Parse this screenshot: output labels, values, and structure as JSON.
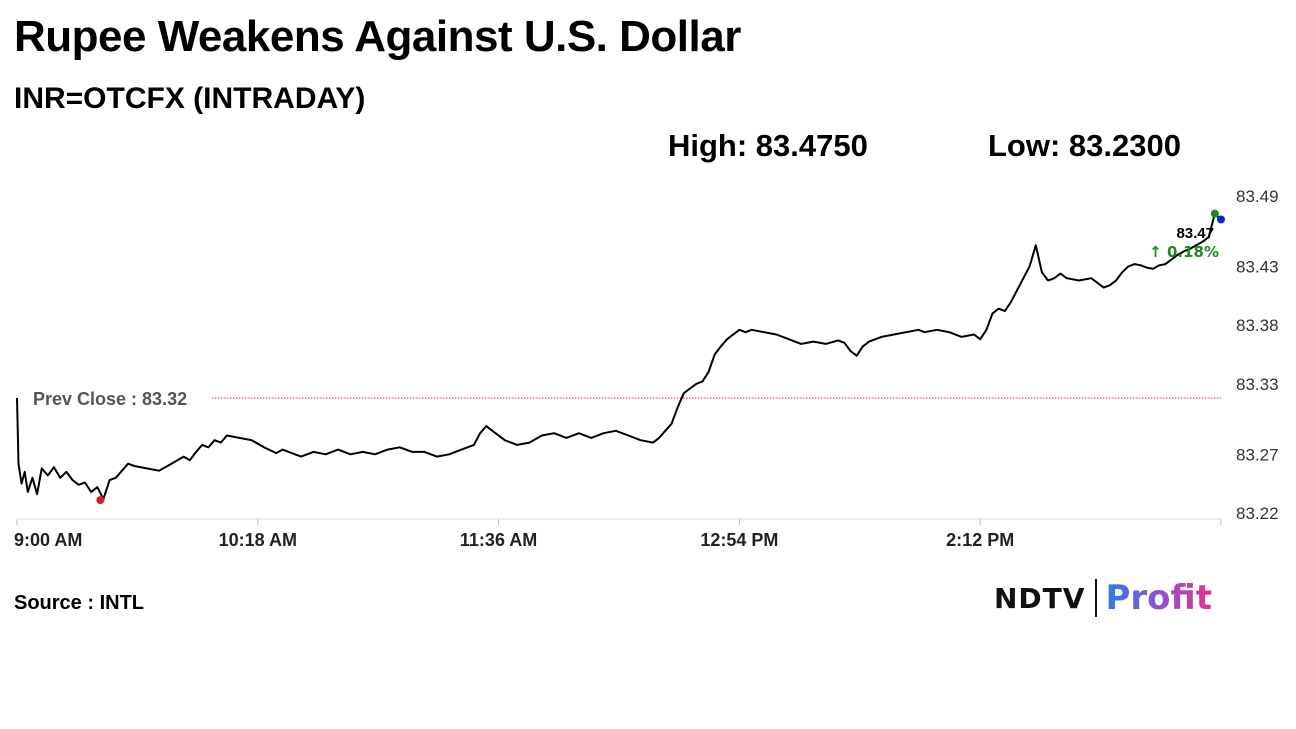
{
  "title": "Rupee Weakens Against U.S. Dollar",
  "subtitle": "INR=OTCFX (INTRADAY)",
  "stats": {
    "high": "High: 83.4750",
    "low": "Low: 83.2300"
  },
  "source": "Source : INTL",
  "brand": {
    "left": "NDTV",
    "right": "Profit"
  },
  "chart_data": {
    "type": "line",
    "y_ticks": [
      "83.49",
      "83.43",
      "83.38",
      "83.33",
      "83.27",
      "83.22"
    ],
    "y_tick_values": [
      83.49,
      83.43,
      83.38,
      83.33,
      83.27,
      83.22
    ],
    "ylim": [
      83.22,
      83.49
    ],
    "x_ticks": [
      "9:00 AM",
      "10:18 AM",
      "11:36 AM",
      "12:54 PM",
      "2:12 PM"
    ],
    "x_tick_minutes": [
      0,
      78,
      156,
      234,
      312
    ],
    "xlim": [
      0,
      390
    ],
    "prev_close": {
      "label": "Prev Close : 83.32",
      "value": 83.318,
      "color": "#c0392b"
    },
    "last": {
      "value_label": "83.47",
      "change_label": "↑ 0.18%",
      "change_color": "#1e8c1e"
    },
    "markers": [
      {
        "name": "day-low-marker",
        "x": 27,
        "y": 83.231,
        "color": "#e31b1b"
      },
      {
        "name": "day-high-marker",
        "x": 388,
        "y": 83.475,
        "color": "#1a8a1a"
      },
      {
        "name": "last-price-marker",
        "x": 390,
        "y": 83.47,
        "color": "#1122cc"
      }
    ],
    "series": [
      {
        "color": "#000000",
        "points": [
          [
            0,
            83.318
          ],
          [
            0.5,
            83.262
          ],
          [
            1.5,
            83.245
          ],
          [
            2.5,
            83.255
          ],
          [
            3.5,
            83.238
          ],
          [
            5,
            83.25
          ],
          [
            6.5,
            83.236
          ],
          [
            8,
            83.258
          ],
          [
            10,
            83.252
          ],
          [
            12,
            83.259
          ],
          [
            14,
            83.25
          ],
          [
            16,
            83.255
          ],
          [
            18,
            83.248
          ],
          [
            20,
            83.244
          ],
          [
            22,
            83.246
          ],
          [
            24,
            83.238
          ],
          [
            26,
            83.242
          ],
          [
            28,
            83.232
          ],
          [
            30,
            83.248
          ],
          [
            32,
            83.25
          ],
          [
            34,
            83.256
          ],
          [
            36,
            83.262
          ],
          [
            38,
            83.26
          ],
          [
            42,
            83.258
          ],
          [
            46,
            83.256
          ],
          [
            50,
            83.262
          ],
          [
            54,
            83.268
          ],
          [
            56,
            83.265
          ],
          [
            58,
            83.272
          ],
          [
            60,
            83.278
          ],
          [
            62,
            83.276
          ],
          [
            64,
            83.282
          ],
          [
            66,
            83.28
          ],
          [
            68,
            83.286
          ],
          [
            72,
            83.284
          ],
          [
            76,
            83.282
          ],
          [
            80,
            83.276
          ],
          [
            84,
            83.271
          ],
          [
            86,
            83.274
          ],
          [
            88,
            83.272
          ],
          [
            92,
            83.268
          ],
          [
            96,
            83.272
          ],
          [
            100,
            83.27
          ],
          [
            104,
            83.274
          ],
          [
            108,
            83.27
          ],
          [
            112,
            83.272
          ],
          [
            116,
            83.27
          ],
          [
            120,
            83.274
          ],
          [
            124,
            83.276
          ],
          [
            128,
            83.272
          ],
          [
            132,
            83.272
          ],
          [
            136,
            83.268
          ],
          [
            140,
            83.27
          ],
          [
            144,
            83.274
          ],
          [
            148,
            83.278
          ],
          [
            150,
            83.288
          ],
          [
            152,
            83.294
          ],
          [
            154,
            83.29
          ],
          [
            156,
            83.286
          ],
          [
            158,
            83.282
          ],
          [
            162,
            83.278
          ],
          [
            166,
            83.28
          ],
          [
            170,
            83.286
          ],
          [
            174,
            83.288
          ],
          [
            178,
            83.284
          ],
          [
            182,
            83.288
          ],
          [
            186,
            83.284
          ],
          [
            190,
            83.288
          ],
          [
            194,
            83.29
          ],
          [
            198,
            83.286
          ],
          [
            202,
            83.282
          ],
          [
            206,
            83.28
          ],
          [
            208,
            83.284
          ],
          [
            210,
            83.29
          ],
          [
            212,
            83.296
          ],
          [
            214,
            83.31
          ],
          [
            216,
            83.322
          ],
          [
            218,
            83.326
          ],
          [
            220,
            83.33
          ],
          [
            222,
            83.332
          ],
          [
            224,
            83.34
          ],
          [
            226,
            83.355
          ],
          [
            228,
            83.362
          ],
          [
            230,
            83.368
          ],
          [
            232,
            83.372
          ],
          [
            234,
            83.376
          ],
          [
            236,
            83.374
          ],
          [
            238,
            83.376
          ],
          [
            242,
            83.374
          ],
          [
            246,
            83.372
          ],
          [
            250,
            83.368
          ],
          [
            254,
            83.364
          ],
          [
            258,
            83.366
          ],
          [
            262,
            83.364
          ],
          [
            266,
            83.367
          ],
          [
            268,
            83.365
          ],
          [
            270,
            83.358
          ],
          [
            272,
            83.354
          ],
          [
            274,
            83.362
          ],
          [
            276,
            83.366
          ],
          [
            280,
            83.37
          ],
          [
            284,
            83.372
          ],
          [
            288,
            83.374
          ],
          [
            292,
            83.376
          ],
          [
            294,
            83.374
          ],
          [
            298,
            83.376
          ],
          [
            302,
            83.374
          ],
          [
            306,
            83.37
          ],
          [
            310,
            83.372
          ],
          [
            312,
            83.368
          ],
          [
            314,
            83.376
          ],
          [
            316,
            83.39
          ],
          [
            318,
            83.394
          ],
          [
            320,
            83.392
          ],
          [
            322,
            83.4
          ],
          [
            324,
            83.41
          ],
          [
            326,
            83.42
          ],
          [
            328,
            83.43
          ],
          [
            330,
            83.448
          ],
          [
            332,
            83.425
          ],
          [
            334,
            83.418
          ],
          [
            336,
            83.42
          ],
          [
            338,
            83.424
          ],
          [
            340,
            83.42
          ],
          [
            344,
            83.418
          ],
          [
            348,
            83.42
          ],
          [
            350,
            83.416
          ],
          [
            352,
            83.412
          ],
          [
            354,
            83.414
          ],
          [
            356,
            83.418
          ],
          [
            358,
            83.425
          ],
          [
            360,
            83.43
          ],
          [
            362,
            83.432
          ],
          [
            364,
            83.431
          ],
          [
            366,
            83.429
          ],
          [
            368,
            83.428
          ],
          [
            370,
            83.431
          ],
          [
            372,
            83.432
          ],
          [
            374,
            83.436
          ],
          [
            376,
            83.44
          ],
          [
            378,
            83.443
          ],
          [
            380,
            83.445
          ],
          [
            382,
            83.448
          ],
          [
            384,
            83.451
          ],
          [
            386,
            83.455
          ],
          [
            388,
            83.475
          ],
          [
            390,
            83.47
          ]
        ]
      }
    ]
  }
}
